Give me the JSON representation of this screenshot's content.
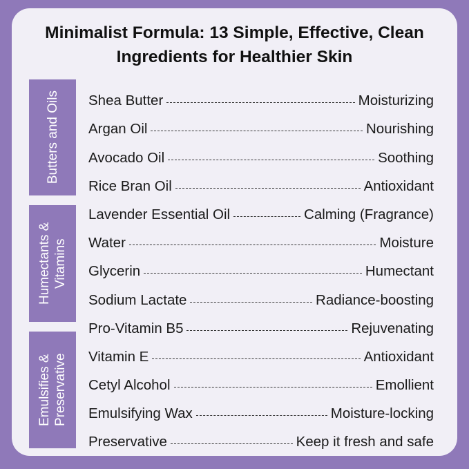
{
  "title": "Minimalist Formula: 13 Simple, Effective, Clean Ingredients for Healthier Skin",
  "colors": {
    "background": "#8f79b9",
    "card": "#f1eff6",
    "category_box": "#8f79b9"
  },
  "categories": [
    {
      "label": "Butters and Oils"
    },
    {
      "label": "Humectants & Vitamins"
    },
    {
      "label": "Emulsifies & Preservative"
    }
  ],
  "ingredients": [
    {
      "name": "Shea Butter",
      "benefit": "Moisturizing"
    },
    {
      "name": "Argan Oil",
      "benefit": "Nourishing"
    },
    {
      "name": "Avocado Oil",
      "benefit": "Soothing"
    },
    {
      "name": "Rice Bran Oil",
      "benefit": "Antioxidant"
    },
    {
      "name": "Lavender Essential Oil",
      "benefit": "Calming (Fragrance)"
    },
    {
      "name": "Water",
      "benefit": "Moisture"
    },
    {
      "name": "Glycerin",
      "benefit": "Humectant"
    },
    {
      "name": "Sodium Lactate",
      "benefit": "Radiance-boosting"
    },
    {
      "name": "Pro-Vitamin B5",
      "benefit": "Rejuvenating"
    },
    {
      "name": "Vitamin E",
      "benefit": "Antioxidant"
    },
    {
      "name": "Cetyl Alcohol",
      "benefit": "Emollient"
    },
    {
      "name": "Emulsifying Wax",
      "benefit": "Moisture-locking"
    },
    {
      "name": "Preservative",
      "benefit": "Keep it fresh and safe"
    }
  ]
}
